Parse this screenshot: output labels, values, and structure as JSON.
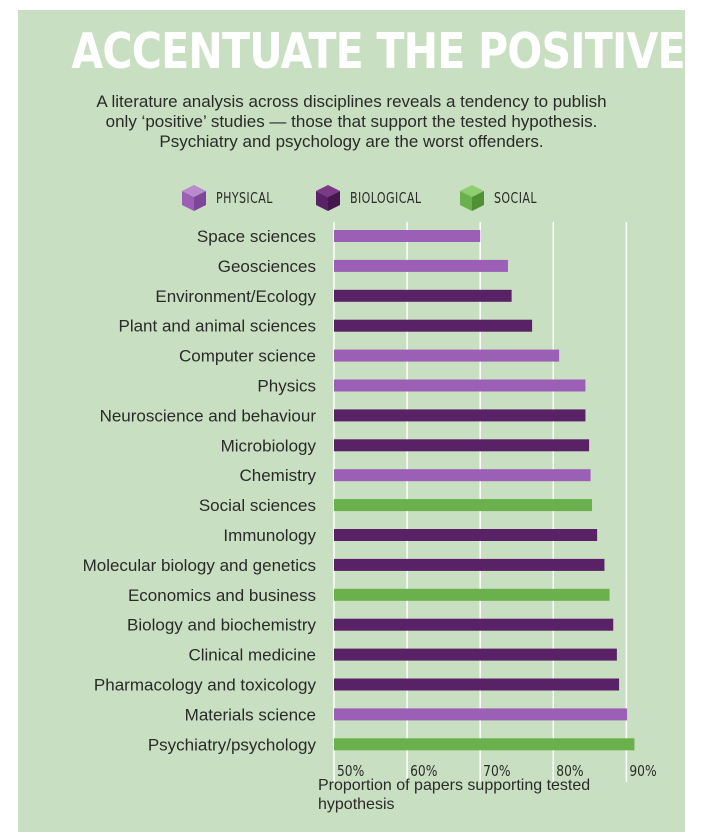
{
  "header": {
    "title": "ACCENTUATE THE POSITIVE",
    "subtitle_lines": [
      "A literature analysis across disciplines reveals a tendency to publish",
      "only ‘positive’ studies — those that support the tested hypothesis.",
      "Psychiatry and psychology are the worst offenders."
    ]
  },
  "legend": [
    {
      "label": "PHYSICAL",
      "color": "#9b5fb5"
    },
    {
      "label": "BIOLOGICAL",
      "color": "#5a2266"
    },
    {
      "label": "SOCIAL",
      "color": "#6ab04c"
    }
  ],
  "chart_data": {
    "type": "bar",
    "orientation": "horizontal",
    "xlabel": "Proportion of papers supporting tested hypothesis",
    "xlim": [
      50,
      92
    ],
    "xticks": [
      50,
      60,
      70,
      80,
      90
    ],
    "xtick_labels": [
      "50%",
      "60%",
      "70%",
      "80%",
      "90%"
    ],
    "grid": true,
    "categories": [
      "Space sciences",
      "Geosciences",
      "Environment/Ecology",
      "Plant and animal sciences",
      "Computer science",
      "Physics",
      "Neuroscience and behaviour",
      "Microbiology",
      "Chemistry",
      "Social sciences",
      "Immunology",
      "Molecular biology and genetics",
      "Economics and business",
      "Biology and biochemistry",
      "Clinical medicine",
      "Pharmacology and toxicology",
      "Materials science",
      "Psychiatry/psychology"
    ],
    "values": [
      70.0,
      73.8,
      74.3,
      77.1,
      80.8,
      84.4,
      84.4,
      84.9,
      85.1,
      85.3,
      86.0,
      87.0,
      87.7,
      88.2,
      88.7,
      89.0,
      90.1,
      91.1
    ],
    "groups": [
      "PHYSICAL",
      "PHYSICAL",
      "BIOLOGICAL",
      "BIOLOGICAL",
      "PHYSICAL",
      "PHYSICAL",
      "BIOLOGICAL",
      "BIOLOGICAL",
      "PHYSICAL",
      "SOCIAL",
      "BIOLOGICAL",
      "BIOLOGICAL",
      "SOCIAL",
      "BIOLOGICAL",
      "BIOLOGICAL",
      "BIOLOGICAL",
      "PHYSICAL",
      "SOCIAL"
    ]
  },
  "colors": {
    "PHYSICAL": "#9b5fb5",
    "BIOLOGICAL": "#5a2266",
    "SOCIAL": "#6ab04c",
    "background": "#c9dfc1",
    "grid": "#ffffff"
  }
}
